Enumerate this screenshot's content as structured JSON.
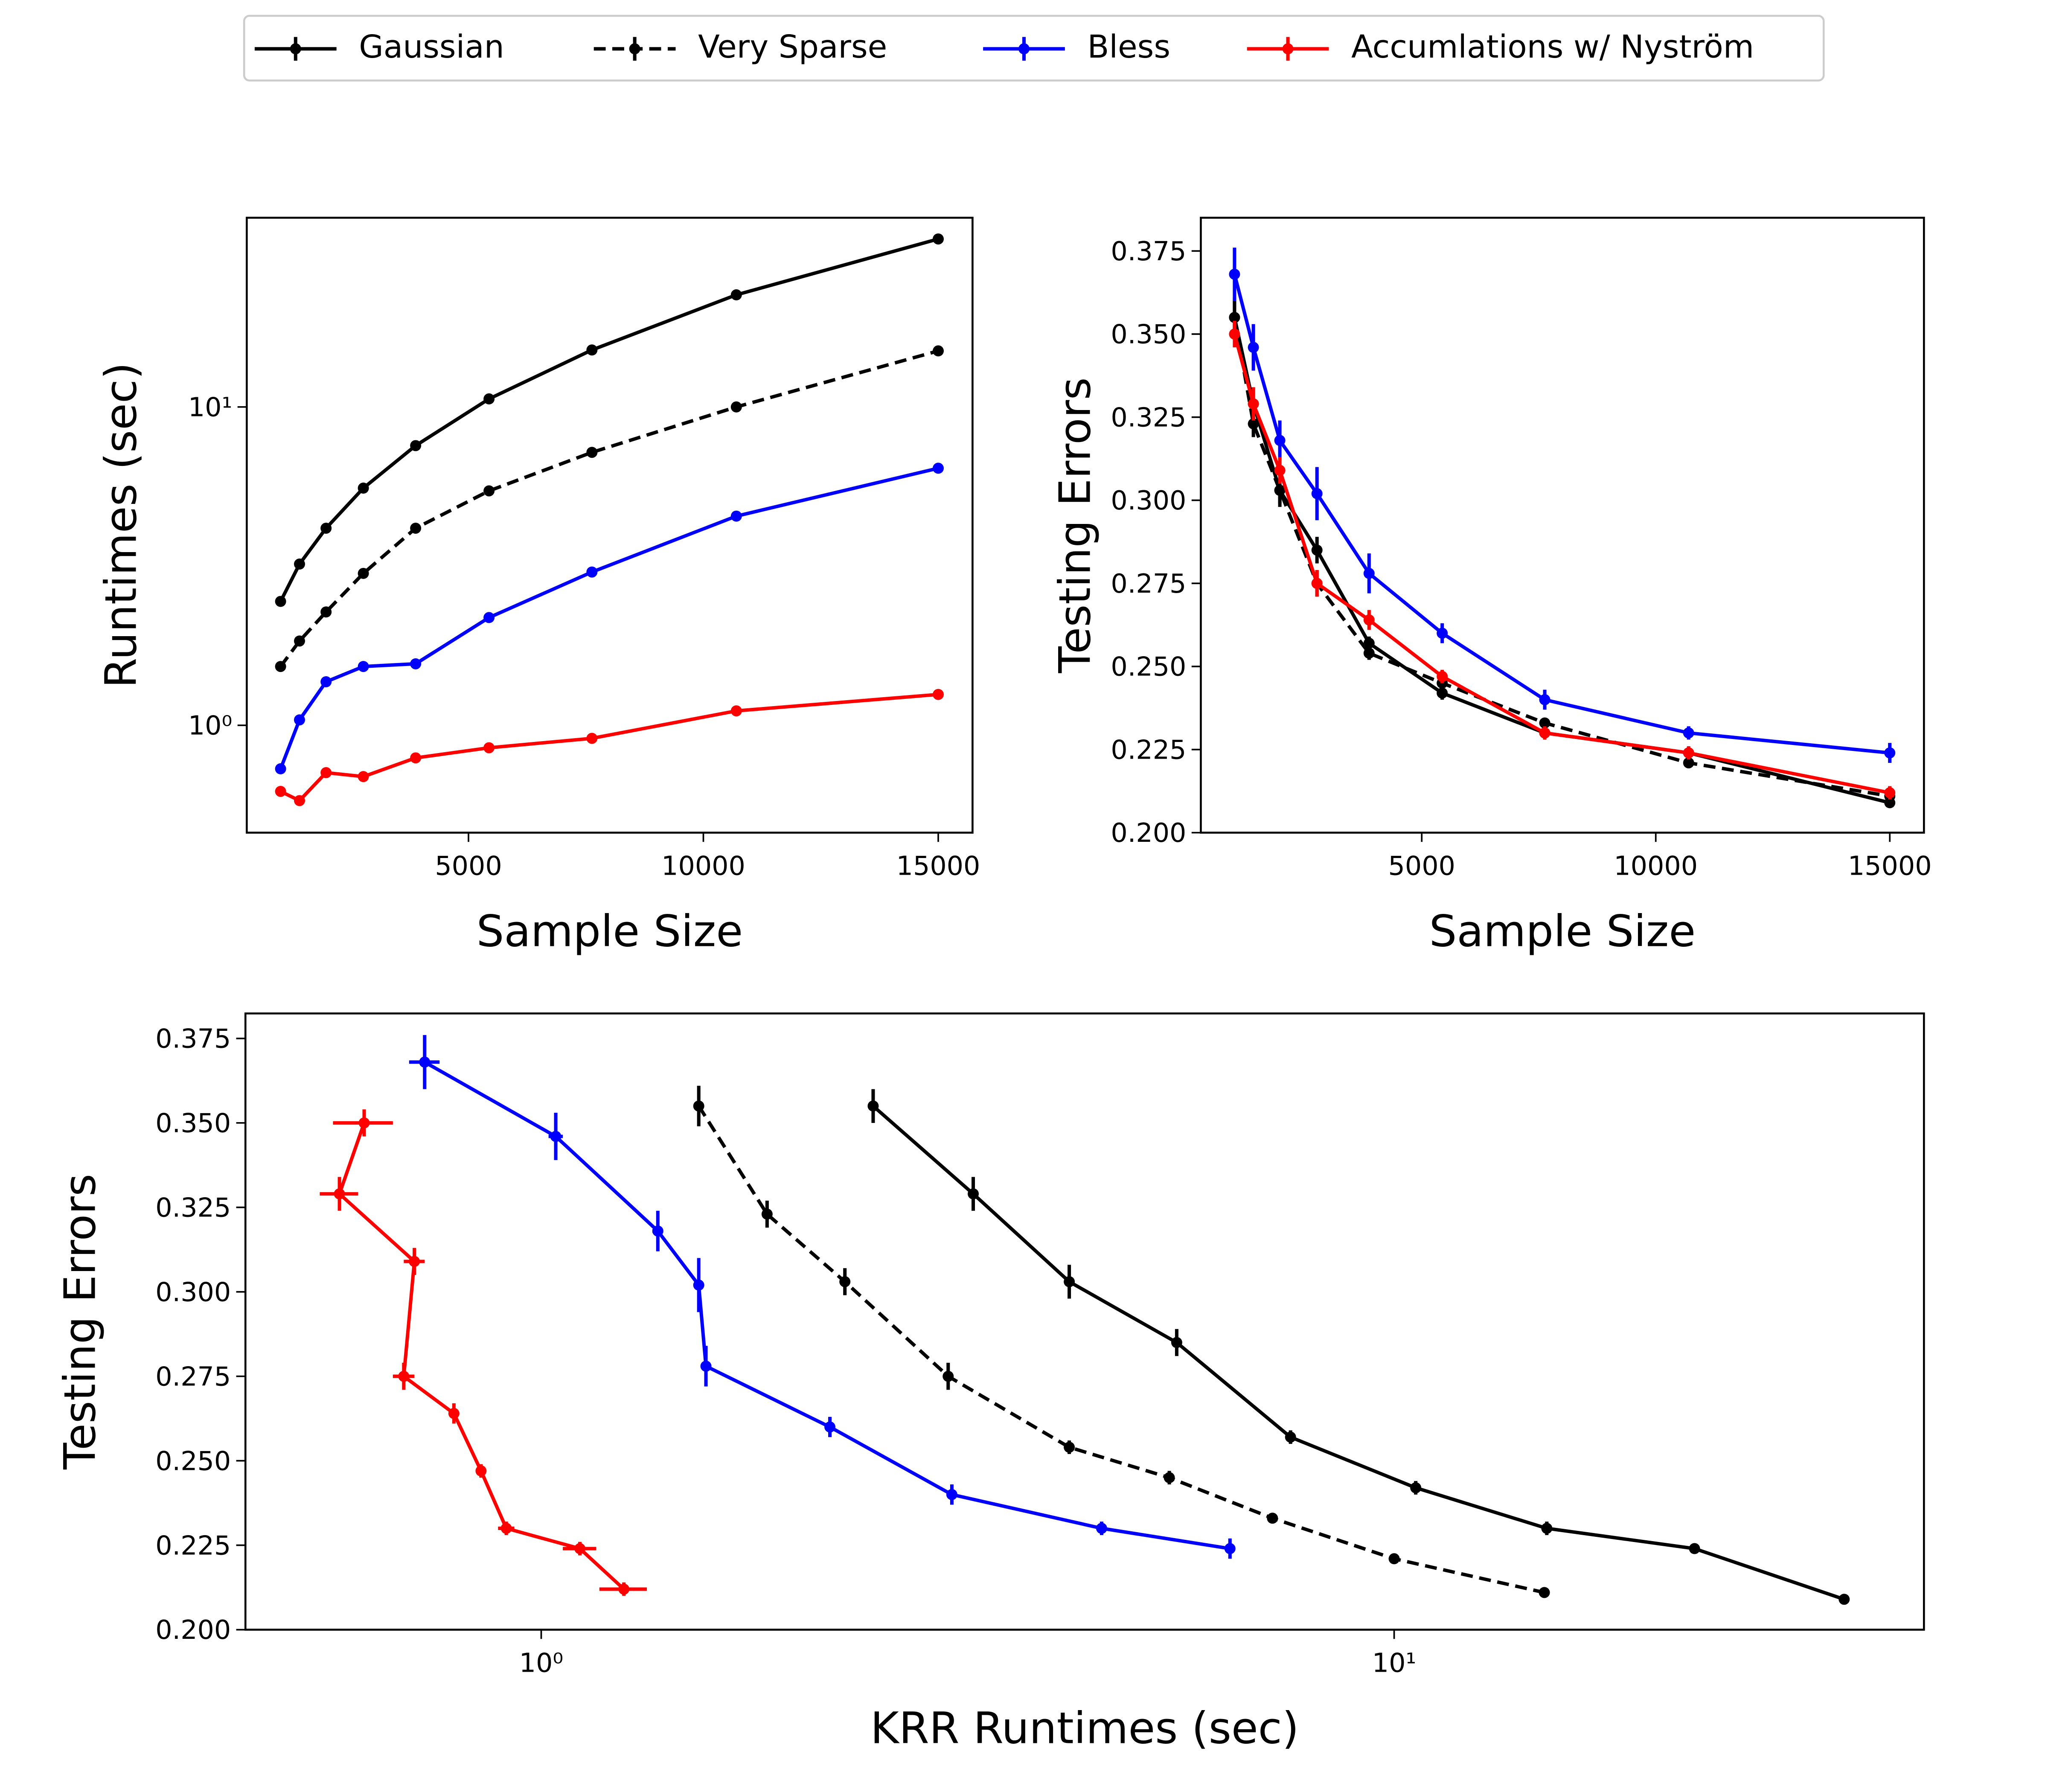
{
  "chart_data": [
    {
      "type": "line",
      "xlabel": "Sample Size",
      "ylabel": "Runtimes (sec)",
      "ylog": true,
      "x": [
        1000,
        1403,
        1968,
        2762,
        3875,
        5437,
        7628,
        10702,
        15000
      ],
      "xlim": [
        280,
        15730
      ],
      "xticks": [
        5000,
        10000,
        15000
      ],
      "ylim": [
        0.46,
        39.3
      ],
      "yticks": [
        {
          "value": 1,
          "label": "10⁰"
        },
        {
          "value": 10,
          "label": "10¹"
        }
      ],
      "series": [
        {
          "name": "Gaussian",
          "color": "#000000",
          "dashed": false,
          "values": [
            2.45,
            3.21,
            4.16,
            5.56,
            7.56,
            10.6,
            15.1,
            22.5,
            33.7
          ]
        },
        {
          "name": "Very Sparse",
          "color": "#000000",
          "dashed": true,
          "values": [
            1.53,
            1.84,
            2.27,
            3.0,
            4.16,
            5.45,
            7.2,
            10.0,
            15.0
          ]
        },
        {
          "name": "Bless",
          "color": "#0000ff",
          "dashed": false,
          "values": [
            0.73,
            1.04,
            1.37,
            1.53,
            1.56,
            2.18,
            3.03,
            4.54,
            6.42
          ]
        },
        {
          "name": "Accumlations w/ Nyström",
          "color": "#ff0000",
          "dashed": false,
          "values": [
            0.62,
            0.58,
            0.71,
            0.69,
            0.79,
            0.85,
            0.91,
            1.11,
            1.25
          ]
        }
      ]
    },
    {
      "type": "line",
      "xlabel": "Sample Size",
      "ylabel": "Testing Errors",
      "x": [
        1000,
        1403,
        1968,
        2762,
        3875,
        5437,
        7628,
        10702,
        15000
      ],
      "xlim": [
        280,
        15730
      ],
      "xticks": [
        5000,
        10000,
        15000
      ],
      "ylim": [
        0.2,
        0.385
      ],
      "yticks": [
        {
          "value": 0.2,
          "label": "0.200"
        },
        {
          "value": 0.225,
          "label": "0.225"
        },
        {
          "value": 0.25,
          "label": "0.250"
        },
        {
          "value": 0.275,
          "label": "0.275"
        },
        {
          "value": 0.3,
          "label": "0.300"
        },
        {
          "value": 0.325,
          "label": "0.325"
        },
        {
          "value": 0.35,
          "label": "0.350"
        },
        {
          "value": 0.375,
          "label": "0.375"
        }
      ],
      "series": [
        {
          "name": "Gaussian",
          "color": "#000000",
          "dashed": false,
          "values": [
            0.355,
            0.329,
            0.303,
            0.285,
            0.257,
            0.242,
            0.23,
            0.224,
            0.209
          ],
          "errors": [
            0.005,
            0.005,
            0.005,
            0.004,
            0.002,
            0.002,
            0.002,
            0.001,
            0.001
          ]
        },
        {
          "name": "Very Sparse",
          "color": "#000000",
          "dashed": true,
          "values": [
            0.355,
            0.323,
            0.303,
            0.275,
            0.254,
            0.245,
            0.233,
            0.221,
            0.211
          ],
          "errors": [
            0.006,
            0.004,
            0.004,
            0.004,
            0.002,
            0.002,
            0.001,
            0.001,
            0.001
          ]
        },
        {
          "name": "Bless",
          "color": "#0000ff",
          "dashed": false,
          "values": [
            0.368,
            0.346,
            0.318,
            0.302,
            0.278,
            0.26,
            0.24,
            0.23,
            0.224
          ],
          "errors": [
            0.008,
            0.007,
            0.006,
            0.008,
            0.006,
            0.003,
            0.003,
            0.002,
            0.003
          ]
        },
        {
          "name": "Accumlations w/ Nyström",
          "color": "#ff0000",
          "dashed": false,
          "values": [
            0.35,
            0.329,
            0.309,
            0.275,
            0.264,
            0.247,
            0.23,
            0.224,
            0.212
          ],
          "errors": [
            0.004,
            0.005,
            0.004,
            0.004,
            0.003,
            0.002,
            0.002,
            0.002,
            0.002
          ]
        }
      ]
    },
    {
      "type": "line",
      "xlabel": "KRR Runtimes (sec)",
      "ylabel": "Testing Errors",
      "xlog": true,
      "xlim": [
        0.45,
        41.8
      ],
      "xticks": [
        {
          "value": 1,
          "label": "10⁰"
        },
        {
          "value": 10,
          "label": "10¹"
        }
      ],
      "ylim": [
        0.2,
        0.3824
      ],
      "yticks": [
        {
          "value": 0.2,
          "label": "0.200"
        },
        {
          "value": 0.225,
          "label": "0.225"
        },
        {
          "value": 0.25,
          "label": "0.250"
        },
        {
          "value": 0.275,
          "label": "0.275"
        },
        {
          "value": 0.3,
          "label": "0.300"
        },
        {
          "value": 0.325,
          "label": "0.325"
        },
        {
          "value": 0.35,
          "label": "0.350"
        },
        {
          "value": 0.375,
          "label": "0.375"
        }
      ],
      "series": [
        {
          "name": "Gaussian",
          "color": "#000000",
          "dashed": false,
          "x": [
            2.45,
            3.21,
            4.16,
            5.56,
            7.56,
            10.6,
            15.1,
            22.5,
            33.7
          ],
          "x_err": [
            0.02,
            0.03,
            0.03,
            0.05,
            0.05,
            0.08,
            0.1,
            0.2,
            0.3
          ],
          "values": [
            0.355,
            0.329,
            0.303,
            0.285,
            0.257,
            0.242,
            0.23,
            0.224,
            0.209
          ],
          "errors": [
            0.005,
            0.005,
            0.005,
            0.004,
            0.002,
            0.002,
            0.002,
            0.001,
            0.001
          ]
        },
        {
          "name": "Very Sparse",
          "color": "#000000",
          "dashed": true,
          "x": [
            1.53,
            1.84,
            2.27,
            3.0,
            4.16,
            5.45,
            7.2,
            10.0,
            15.0
          ],
          "x_err": [
            0.02,
            0.02,
            0.03,
            0.03,
            0.04,
            0.05,
            0.07,
            0.1,
            0.15
          ],
          "values": [
            0.355,
            0.323,
            0.303,
            0.275,
            0.254,
            0.245,
            0.233,
            0.221,
            0.211
          ],
          "errors": [
            0.006,
            0.004,
            0.004,
            0.004,
            0.002,
            0.002,
            0.001,
            0.001,
            0.001
          ]
        },
        {
          "name": "Bless",
          "color": "#0000ff",
          "dashed": false,
          "x": [
            0.73,
            1.04,
            1.37,
            1.53,
            1.56,
            2.18,
            3.03,
            4.54,
            6.42
          ],
          "x_err": [
            0.03,
            0.02,
            0.02,
            0.02,
            0.02,
            0.02,
            0.03,
            0.05,
            0.05
          ],
          "values": [
            0.368,
            0.346,
            0.318,
            0.302,
            0.278,
            0.26,
            0.24,
            0.23,
            0.224
          ],
          "errors": [
            0.008,
            0.007,
            0.006,
            0.008,
            0.006,
            0.003,
            0.003,
            0.002,
            0.003
          ]
        },
        {
          "name": "Accumlations w/ Nyström",
          "color": "#ff0000",
          "dashed": false,
          "x": [
            0.62,
            0.58,
            0.71,
            0.69,
            0.79,
            0.85,
            0.91,
            1.11,
            1.25
          ],
          "x_err": [
            0.05,
            0.03,
            0.02,
            0.02,
            0.01,
            0.01,
            0.02,
            0.05,
            0.08
          ],
          "values": [
            0.35,
            0.329,
            0.309,
            0.275,
            0.264,
            0.247,
            0.23,
            0.224,
            0.212
          ],
          "errors": [
            0.004,
            0.005,
            0.004,
            0.004,
            0.003,
            0.002,
            0.002,
            0.002,
            0.002
          ]
        }
      ]
    }
  ]
}
